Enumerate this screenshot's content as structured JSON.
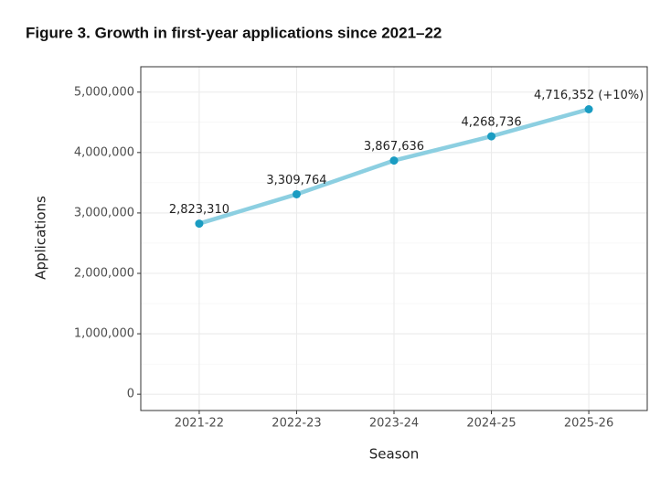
{
  "chart_data": {
    "type": "line",
    "title": "Figure 3. Growth in first-year applications since 2021–22",
    "x_label": "Season",
    "y_label": "Applications",
    "categories": [
      "2021-22",
      "2022-23",
      "2023-24",
      "2024-25",
      "2025-26"
    ],
    "values": [
      2823310,
      3309764,
      3867636,
      4268736,
      4716352
    ],
    "value_labels": [
      "2,823,310",
      "3,309,764",
      "3,867,636",
      "4,268,736",
      "4,716,352 (+10%)"
    ],
    "line_color": "#8ccfe1",
    "point_color": "#1a9cc2",
    "ylim": [
      -270000,
      5420000
    ],
    "yticks": [
      0,
      {
        "value": 1000000,
        "label": "1,000,000"
      },
      {
        "value": 2000000,
        "label": "2,000,000"
      },
      {
        "value": 3000000,
        "label": "3,000,000"
      },
      {
        "value": 4000000,
        "label": "4,000,000"
      },
      {
        "value": 5000000,
        "label": "5,000,000"
      }
    ],
    "grid": true
  }
}
